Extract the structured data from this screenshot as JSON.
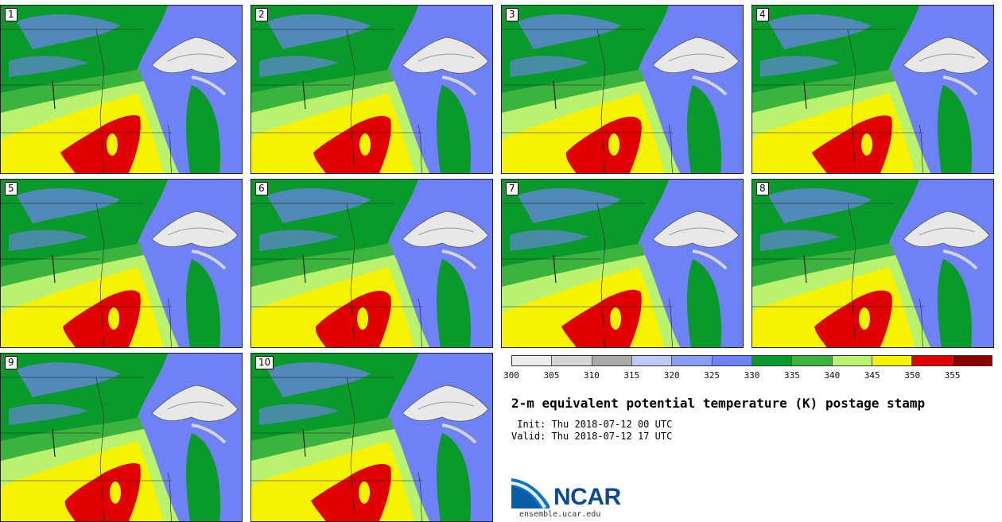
{
  "panels": [
    {
      "label": "1"
    },
    {
      "label": "2"
    },
    {
      "label": "3"
    },
    {
      "label": "4"
    },
    {
      "label": "5"
    },
    {
      "label": "6"
    },
    {
      "label": "7"
    },
    {
      "label": "8"
    },
    {
      "label": "9"
    },
    {
      "label": "10"
    }
  ],
  "colorbar": {
    "ticks": [
      "300",
      "305",
      "310",
      "315",
      "320",
      "325",
      "330",
      "335",
      "340",
      "345",
      "350",
      "355"
    ],
    "colors": [
      "#ececec",
      "#d4d4d4",
      "#a9a9a9",
      "#bdc9fb",
      "#8b9cf7",
      "#6f82f5",
      "#0a9a2b",
      "#3bb33e",
      "#b9f26e",
      "#f7f200",
      "#e10000",
      "#8b0000"
    ]
  },
  "title": "2-m equivalent potential temperature (K) postage stamp",
  "init": " Init: Thu 2018-07-12 00 UTC",
  "valid": "Valid: Thu 2018-07-12 17 UTC",
  "logo": {
    "name": "NCAR",
    "url": "ensemble.ucar.edu"
  }
}
